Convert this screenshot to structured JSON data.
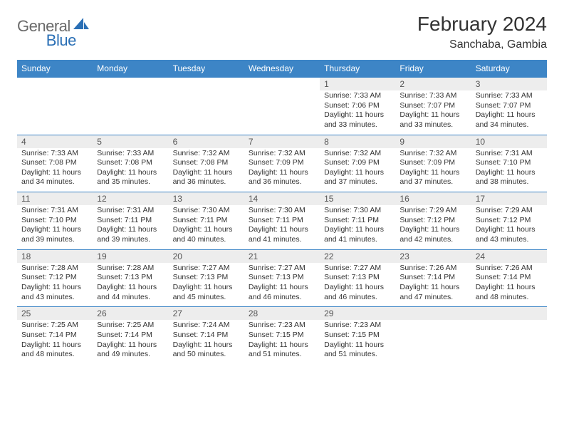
{
  "logo": {
    "word1": "General",
    "word2": "Blue"
  },
  "title": "February 2024",
  "location": "Sanchaba, Gambia",
  "colors": {
    "header_bg": "#3d85c6",
    "header_fg": "#ffffff",
    "daynum_bg": "#ededed",
    "border": "#3d85c6",
    "logo_gray": "#6a6a6a",
    "logo_blue": "#2a6fb5"
  },
  "weekdays": [
    "Sunday",
    "Monday",
    "Tuesday",
    "Wednesday",
    "Thursday",
    "Friday",
    "Saturday"
  ],
  "weeks": [
    [
      null,
      null,
      null,
      null,
      {
        "n": "1",
        "sr": "Sunrise: 7:33 AM",
        "ss": "Sunset: 7:06 PM",
        "d1": "Daylight: 11 hours",
        "d2": "and 33 minutes."
      },
      {
        "n": "2",
        "sr": "Sunrise: 7:33 AM",
        "ss": "Sunset: 7:07 PM",
        "d1": "Daylight: 11 hours",
        "d2": "and 33 minutes."
      },
      {
        "n": "3",
        "sr": "Sunrise: 7:33 AM",
        "ss": "Sunset: 7:07 PM",
        "d1": "Daylight: 11 hours",
        "d2": "and 34 minutes."
      }
    ],
    [
      {
        "n": "4",
        "sr": "Sunrise: 7:33 AM",
        "ss": "Sunset: 7:08 PM",
        "d1": "Daylight: 11 hours",
        "d2": "and 34 minutes."
      },
      {
        "n": "5",
        "sr": "Sunrise: 7:33 AM",
        "ss": "Sunset: 7:08 PM",
        "d1": "Daylight: 11 hours",
        "d2": "and 35 minutes."
      },
      {
        "n": "6",
        "sr": "Sunrise: 7:32 AM",
        "ss": "Sunset: 7:08 PM",
        "d1": "Daylight: 11 hours",
        "d2": "and 36 minutes."
      },
      {
        "n": "7",
        "sr": "Sunrise: 7:32 AM",
        "ss": "Sunset: 7:09 PM",
        "d1": "Daylight: 11 hours",
        "d2": "and 36 minutes."
      },
      {
        "n": "8",
        "sr": "Sunrise: 7:32 AM",
        "ss": "Sunset: 7:09 PM",
        "d1": "Daylight: 11 hours",
        "d2": "and 37 minutes."
      },
      {
        "n": "9",
        "sr": "Sunrise: 7:32 AM",
        "ss": "Sunset: 7:09 PM",
        "d1": "Daylight: 11 hours",
        "d2": "and 37 minutes."
      },
      {
        "n": "10",
        "sr": "Sunrise: 7:31 AM",
        "ss": "Sunset: 7:10 PM",
        "d1": "Daylight: 11 hours",
        "d2": "and 38 minutes."
      }
    ],
    [
      {
        "n": "11",
        "sr": "Sunrise: 7:31 AM",
        "ss": "Sunset: 7:10 PM",
        "d1": "Daylight: 11 hours",
        "d2": "and 39 minutes."
      },
      {
        "n": "12",
        "sr": "Sunrise: 7:31 AM",
        "ss": "Sunset: 7:11 PM",
        "d1": "Daylight: 11 hours",
        "d2": "and 39 minutes."
      },
      {
        "n": "13",
        "sr": "Sunrise: 7:30 AM",
        "ss": "Sunset: 7:11 PM",
        "d1": "Daylight: 11 hours",
        "d2": "and 40 minutes."
      },
      {
        "n": "14",
        "sr": "Sunrise: 7:30 AM",
        "ss": "Sunset: 7:11 PM",
        "d1": "Daylight: 11 hours",
        "d2": "and 41 minutes."
      },
      {
        "n": "15",
        "sr": "Sunrise: 7:30 AM",
        "ss": "Sunset: 7:11 PM",
        "d1": "Daylight: 11 hours",
        "d2": "and 41 minutes."
      },
      {
        "n": "16",
        "sr": "Sunrise: 7:29 AM",
        "ss": "Sunset: 7:12 PM",
        "d1": "Daylight: 11 hours",
        "d2": "and 42 minutes."
      },
      {
        "n": "17",
        "sr": "Sunrise: 7:29 AM",
        "ss": "Sunset: 7:12 PM",
        "d1": "Daylight: 11 hours",
        "d2": "and 43 minutes."
      }
    ],
    [
      {
        "n": "18",
        "sr": "Sunrise: 7:28 AM",
        "ss": "Sunset: 7:12 PM",
        "d1": "Daylight: 11 hours",
        "d2": "and 43 minutes."
      },
      {
        "n": "19",
        "sr": "Sunrise: 7:28 AM",
        "ss": "Sunset: 7:13 PM",
        "d1": "Daylight: 11 hours",
        "d2": "and 44 minutes."
      },
      {
        "n": "20",
        "sr": "Sunrise: 7:27 AM",
        "ss": "Sunset: 7:13 PM",
        "d1": "Daylight: 11 hours",
        "d2": "and 45 minutes."
      },
      {
        "n": "21",
        "sr": "Sunrise: 7:27 AM",
        "ss": "Sunset: 7:13 PM",
        "d1": "Daylight: 11 hours",
        "d2": "and 46 minutes."
      },
      {
        "n": "22",
        "sr": "Sunrise: 7:27 AM",
        "ss": "Sunset: 7:13 PM",
        "d1": "Daylight: 11 hours",
        "d2": "and 46 minutes."
      },
      {
        "n": "23",
        "sr": "Sunrise: 7:26 AM",
        "ss": "Sunset: 7:14 PM",
        "d1": "Daylight: 11 hours",
        "d2": "and 47 minutes."
      },
      {
        "n": "24",
        "sr": "Sunrise: 7:26 AM",
        "ss": "Sunset: 7:14 PM",
        "d1": "Daylight: 11 hours",
        "d2": "and 48 minutes."
      }
    ],
    [
      {
        "n": "25",
        "sr": "Sunrise: 7:25 AM",
        "ss": "Sunset: 7:14 PM",
        "d1": "Daylight: 11 hours",
        "d2": "and 48 minutes."
      },
      {
        "n": "26",
        "sr": "Sunrise: 7:25 AM",
        "ss": "Sunset: 7:14 PM",
        "d1": "Daylight: 11 hours",
        "d2": "and 49 minutes."
      },
      {
        "n": "27",
        "sr": "Sunrise: 7:24 AM",
        "ss": "Sunset: 7:14 PM",
        "d1": "Daylight: 11 hours",
        "d2": "and 50 minutes."
      },
      {
        "n": "28",
        "sr": "Sunrise: 7:23 AM",
        "ss": "Sunset: 7:15 PM",
        "d1": "Daylight: 11 hours",
        "d2": "and 51 minutes."
      },
      {
        "n": "29",
        "sr": "Sunrise: 7:23 AM",
        "ss": "Sunset: 7:15 PM",
        "d1": "Daylight: 11 hours",
        "d2": "and 51 minutes."
      },
      null,
      null
    ]
  ]
}
